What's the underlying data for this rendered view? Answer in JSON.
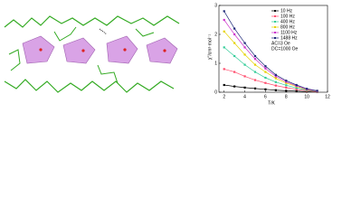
{
  "chart_data": {
    "type": "line",
    "xlabel": "T/K",
    "ylabel": "χ''/cm³·mol⁻¹",
    "x": [
      2,
      3,
      4,
      5,
      6,
      7,
      8,
      9,
      10,
      11
    ],
    "series": [
      {
        "name": "10 Hz",
        "color": "#000000",
        "values": [
          0.25,
          0.2,
          0.16,
          0.13,
          0.1,
          0.07,
          0.05,
          0.04,
          0.02,
          0.01
        ]
      },
      {
        "name": "100 Hz",
        "color": "#ff4d6d",
        "values": [
          0.8,
          0.7,
          0.55,
          0.42,
          0.32,
          0.23,
          0.16,
          0.1,
          0.05,
          0.02
        ]
      },
      {
        "name": "400 Hz",
        "color": "#33cc99",
        "values": [
          1.55,
          1.25,
          0.95,
          0.7,
          0.5,
          0.35,
          0.24,
          0.15,
          0.07,
          0.03
        ]
      },
      {
        "name": "800 Hz",
        "color": "#e6d200",
        "values": [
          2.1,
          1.7,
          1.3,
          0.95,
          0.7,
          0.48,
          0.32,
          0.2,
          0.09,
          0.04
        ]
      },
      {
        "name": "1100 Hz",
        "color": "#cc33cc",
        "values": [
          2.5,
          2.0,
          1.55,
          1.15,
          0.82,
          0.55,
          0.36,
          0.22,
          0.1,
          0.04
        ]
      },
      {
        "name": "1488 Hz",
        "color": "#1f2a7a",
        "values": [
          2.8,
          2.2,
          1.7,
          1.25,
          0.9,
          0.6,
          0.4,
          0.25,
          0.12,
          0.05
        ]
      }
    ],
    "annotations": [
      "AC=3 Oe",
      "DC=1000 Oe"
    ],
    "xlim": [
      1.5,
      12
    ],
    "xticks": [
      2,
      4,
      6,
      8,
      10,
      12
    ],
    "ylim": [
      0,
      3
    ],
    "yticks": [
      0,
      1,
      2,
      3
    ],
    "legend": "top-right"
  }
}
